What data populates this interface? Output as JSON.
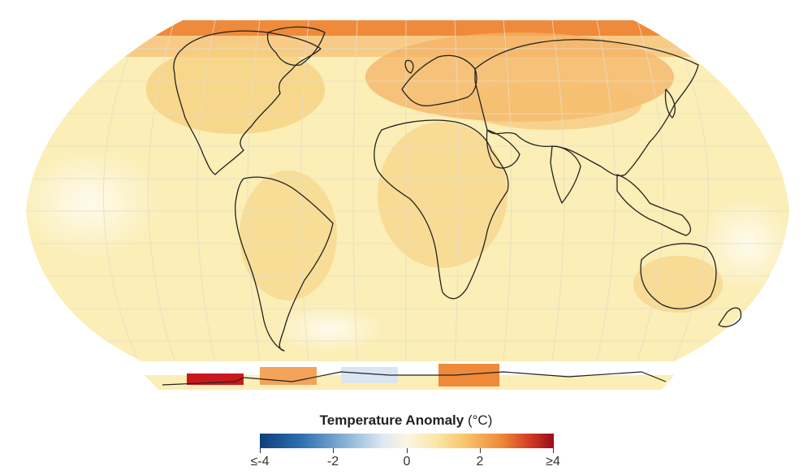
{
  "legend": {
    "title_bold": "Temperature Anomaly",
    "title_unit": "(°C)",
    "ticks": [
      "≤-4",
      "-2",
      "0",
      "2",
      "≥4"
    ]
  },
  "map": {
    "projection": "robinson-like",
    "palette": {
      "land_line": "#222222",
      "grid": "#e6dcc8",
      "warm_base": "#fbeeb6",
      "warm_mid": "#f6cf7d",
      "hot": "#ef8a3a",
      "very_hot": "#c8191e",
      "cool": "#c8dcef"
    }
  }
}
